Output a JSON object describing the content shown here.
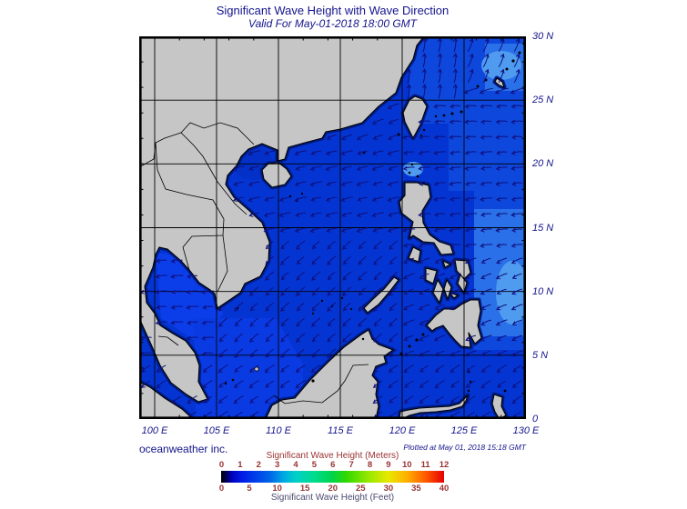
{
  "page": {
    "title": "Significant Wave Height with Wave Direction",
    "subtitle": "Valid For May-01-2018 18:00 GMT",
    "credit": "oceanweather inc.",
    "plotted_note": "Plotted at May 01, 2018 15:18 GMT"
  },
  "axes": {
    "lon_labels": [
      {
        "text": "100 E",
        "lon": 100
      },
      {
        "text": "105 E",
        "lon": 105
      },
      {
        "text": "110 E",
        "lon": 110
      },
      {
        "text": "115 E",
        "lon": 115
      },
      {
        "text": "120 E",
        "lon": 120
      },
      {
        "text": "125 E",
        "lon": 125
      },
      {
        "text": "130 E",
        "lon": 130
      }
    ],
    "lat_labels": [
      {
        "text": "30 N",
        "lat": 30
      },
      {
        "text": "25 N",
        "lat": 25
      },
      {
        "text": "20 N",
        "lat": 20
      },
      {
        "text": "15 N",
        "lat": 15
      },
      {
        "text": "10 N",
        "lat": 10
      },
      {
        "text": "5 N",
        "lat": 5
      },
      {
        "text": "0",
        "lat": 0
      }
    ]
  },
  "colorbar": {
    "meters_label": "Significant Wave Height (Meters)",
    "feet_label": "Significant Wave Height (Feet)",
    "meters_ticks": [
      0,
      1,
      2,
      3,
      4,
      5,
      6,
      7,
      8,
      9,
      10,
      11,
      12
    ],
    "feet_ticks": [
      0,
      5,
      10,
      15,
      20,
      25,
      30,
      35,
      40
    ],
    "gradient": [
      [
        0,
        "#000000"
      ],
      [
        0.02,
        "#00004A"
      ],
      [
        0.045,
        "#0000B4"
      ],
      [
        0.09,
        "#001AE6"
      ],
      [
        0.167,
        "#0046E8"
      ],
      [
        0.22,
        "#0066E8"
      ],
      [
        0.28,
        "#00A8E4"
      ],
      [
        0.333,
        "#00CFC8"
      ],
      [
        0.417,
        "#00DC8E"
      ],
      [
        0.5,
        "#00D44A"
      ],
      [
        0.56,
        "#30D800"
      ],
      [
        0.667,
        "#9CE800"
      ],
      [
        0.75,
        "#E8E800"
      ],
      [
        0.833,
        "#FFB000"
      ],
      [
        0.917,
        "#FF5A00"
      ],
      [
        1,
        "#E60000"
      ]
    ]
  },
  "colors": {
    "text_navy": "#14148C",
    "text_maroon": "#993333",
    "text_slate": "#4A4A70",
    "land": "#C6C6C6",
    "coastline": "#000000",
    "sea_base": "#0435D2",
    "sea_ne": "#0D47DB",
    "sea_light": "#2A70E8",
    "sea_lighter": "#4E9BF0",
    "sea_gulf": "#0B3DE8",
    "sea_sw": "#0A3AE2",
    "sea_tonkin": "#0330C6",
    "shallow_fringe": "#001C85",
    "arrow": "#10107E",
    "grid": "#000000"
  },
  "chart_data": {
    "type": "heatmap",
    "title": "Significant Wave Height with Wave Direction",
    "extent": {
      "lon": [
        98.75,
        130
      ],
      "lat": [
        0,
        30
      ]
    },
    "grid_interval_deg": 5,
    "wave_height_scale_m": [
      0,
      12
    ],
    "wave_height_scale_ft": [
      0,
      40
    ],
    "dominant_wave_height_m": 1.5,
    "wave_direction_regions": [
      {
        "lonMin": 124.5,
        "lonMax": 130.5,
        "latMin": 26,
        "latMax": 30.5,
        "angle": 70
      },
      {
        "lonMin": 117,
        "lonMax": 124.5,
        "latMin": 25,
        "latMax": 30.5,
        "angle": 84
      },
      {
        "lonMin": 119.5,
        "lonMax": 130.5,
        "latMin": 21.5,
        "latMax": 25,
        "angle": 183
      },
      {
        "lonMin": 120.5,
        "lonMax": 130.5,
        "latMin": 13.5,
        "latMax": 21.5,
        "angle": 188
      },
      {
        "lonMin": 120.5,
        "lonMax": 130.5,
        "latMin": 4.5,
        "latMax": 13.5,
        "angle": 206
      },
      {
        "lonMin": 110,
        "lonMax": 120.5,
        "latMin": 21.5,
        "latMax": 25,
        "angle": 204
      },
      {
        "lonMin": 98.5,
        "lonMax": 120.5,
        "latMin": 14.5,
        "latMax": 21.5,
        "angle": 197
      },
      {
        "lonMin": 104.5,
        "lonMax": 120.5,
        "latMin": 4.5,
        "latMax": 14.5,
        "angle": 226
      },
      {
        "lonMin": 98.5,
        "lonMax": 104.5,
        "latMin": 4.5,
        "latMax": 14.5,
        "angle": 186
      },
      {
        "lonMin": 98.5,
        "lonMax": 130.5,
        "latMin": -0.5,
        "latMax": 4.5,
        "angle": 218
      }
    ]
  }
}
